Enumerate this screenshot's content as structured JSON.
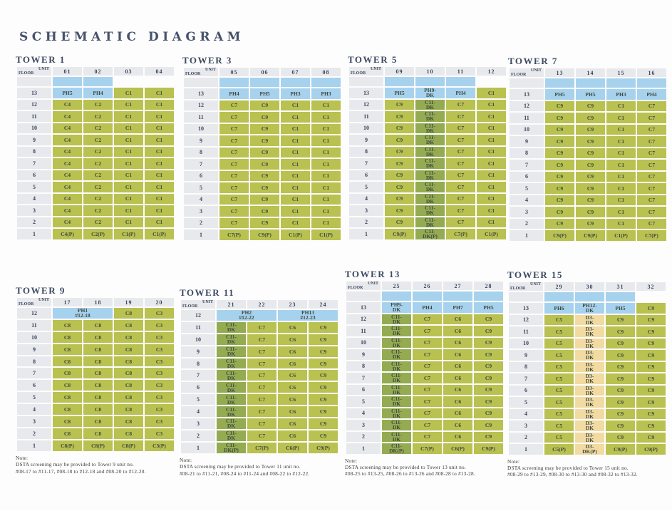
{
  "page": {
    "title": "SCHEMATIC DIAGRAM"
  },
  "corner": {
    "unit": "UNIT",
    "floor": "FLOOR"
  },
  "colors": {
    "green": "#b9c150",
    "dark": "#94ab51",
    "blue": "#a7d2ee",
    "tan": "#f2dba3",
    "gray": "#e8e9ed",
    "headtxt": "#3a465c",
    "celltxt": "#3f4a40"
  },
  "towers": [
    {
      "name": "TOWER 1",
      "units": [
        "01",
        "02",
        "03",
        "04"
      ],
      "gap": [
        "b",
        "b",
        "x",
        "x"
      ],
      "rows": [
        {
          "floor": "13",
          "cells": [
            {
              "t": "PH5",
              "c": "b"
            },
            {
              "t": "PH4",
              "c": "b"
            },
            {
              "t": "C1",
              "c": "g"
            },
            {
              "t": "C1",
              "c": "g"
            }
          ]
        },
        {
          "floors": [
            "12",
            "11",
            "10",
            "9",
            "8",
            "7",
            "6",
            "5",
            "4",
            "3",
            "2"
          ],
          "cells": [
            {
              "t": "C4",
              "c": "g"
            },
            {
              "t": "C2",
              "c": "g"
            },
            {
              "t": "C1",
              "c": "g"
            },
            {
              "t": "C1",
              "c": "g"
            }
          ]
        },
        {
          "floor": "1",
          "cells": [
            {
              "t": "C4(P)",
              "c": "g"
            },
            {
              "t": "C2(P)",
              "c": "g"
            },
            {
              "t": "C1(P)",
              "c": "g"
            },
            {
              "t": "C1(P)",
              "c": "g"
            }
          ]
        }
      ]
    },
    {
      "name": "TOWER 3",
      "units": [
        "05",
        "06",
        "07",
        "08"
      ],
      "gap": [
        "b",
        "b",
        "b",
        "b"
      ],
      "rows": [
        {
          "floor": "13",
          "cells": [
            {
              "t": "PH4",
              "c": "b"
            },
            {
              "t": "PH5",
              "c": "b"
            },
            {
              "t": "PH3",
              "c": "b"
            },
            {
              "t": "PH3",
              "c": "b"
            }
          ]
        },
        {
          "floors": [
            "12",
            "11",
            "10",
            "9",
            "8",
            "7",
            "6",
            "5",
            "4",
            "3",
            "2"
          ],
          "cells": [
            {
              "t": "C7",
              "c": "g"
            },
            {
              "t": "C9",
              "c": "g"
            },
            {
              "t": "C1",
              "c": "g"
            },
            {
              "t": "C1",
              "c": "g"
            }
          ]
        },
        {
          "floor": "1",
          "cells": [
            {
              "t": "C7(P)",
              "c": "g"
            },
            {
              "t": "C9(P)",
              "c": "g"
            },
            {
              "t": "C1(P)",
              "c": "g"
            },
            {
              "t": "C1(P)",
              "c": "g"
            }
          ]
        }
      ]
    },
    {
      "name": "TOWER 5",
      "units": [
        "09",
        "10",
        "11",
        "12"
      ],
      "gap": [
        "b",
        "b",
        "b",
        "x"
      ],
      "rows": [
        {
          "floor": "13",
          "cells": [
            {
              "t": "PH5",
              "c": "b"
            },
            {
              "t": "PH9-\nDK",
              "c": "b"
            },
            {
              "t": "PH4",
              "c": "b"
            },
            {
              "t": "C1",
              "c": "g"
            }
          ]
        },
        {
          "floors": [
            "12",
            "11",
            "10",
            "9",
            "8",
            "7",
            "6",
            "5",
            "4",
            "3",
            "2"
          ],
          "cells": [
            {
              "t": "C9",
              "c": "g"
            },
            {
              "t": "C11-\nDK",
              "c": "d"
            },
            {
              "t": "C7",
              "c": "g"
            },
            {
              "t": "C1",
              "c": "g"
            }
          ]
        },
        {
          "floor": "1",
          "cells": [
            {
              "t": "C9(P)",
              "c": "g"
            },
            {
              "t": "C11-\nDK(P)",
              "c": "d"
            },
            {
              "t": "C7(P)",
              "c": "g"
            },
            {
              "t": "C1(P)",
              "c": "g"
            }
          ]
        }
      ]
    },
    {
      "name": "TOWER 7",
      "units": [
        "13",
        "14",
        "15",
        "16"
      ],
      "gap": [
        "b",
        "b",
        "b",
        "b"
      ],
      "rows": [
        {
          "floor": "13",
          "cells": [
            {
              "t": "PH5",
              "c": "b"
            },
            {
              "t": "PH5",
              "c": "b"
            },
            {
              "t": "PH3",
              "c": "b"
            },
            {
              "t": "PH4",
              "c": "b"
            }
          ]
        },
        {
          "floors": [
            "12",
            "11",
            "10",
            "9",
            "8",
            "7",
            "6",
            "5",
            "4",
            "3",
            "2"
          ],
          "cells": [
            {
              "t": "C9",
              "c": "g"
            },
            {
              "t": "C9",
              "c": "g"
            },
            {
              "t": "C1",
              "c": "g"
            },
            {
              "t": "C7",
              "c": "g"
            }
          ]
        },
        {
          "floor": "1",
          "cells": [
            {
              "t": "C9(P)",
              "c": "g"
            },
            {
              "t": "C9(P)",
              "c": "g"
            },
            {
              "t": "C1(P)",
              "c": "g"
            },
            {
              "t": "C7(P)",
              "c": "g"
            }
          ]
        }
      ]
    },
    {
      "name": "TOWER 9",
      "units": [
        "17",
        "18",
        "19",
        "20"
      ],
      "gap": null,
      "rows": [
        {
          "floor": "12",
          "cells": [
            {
              "t": "PH1\n#12-18",
              "c": "b",
              "s": 2
            },
            {
              "t": "C8",
              "c": "g"
            },
            {
              "t": "C3",
              "c": "g"
            }
          ]
        },
        {
          "floors": [
            "11",
            "10",
            "9",
            "8",
            "7",
            "6",
            "5",
            "4",
            "3",
            "2"
          ],
          "cells": [
            {
              "t": "C8",
              "c": "g"
            },
            {
              "t": "C8",
              "c": "g"
            },
            {
              "t": "C8",
              "c": "g"
            },
            {
              "t": "C3",
              "c": "g"
            }
          ]
        },
        {
          "floor": "1",
          "cells": [
            {
              "t": "C8(P)",
              "c": "g"
            },
            {
              "t": "C8(P)",
              "c": "g"
            },
            {
              "t": "C8(P)",
              "c": "g"
            },
            {
              "t": "C3(P)",
              "c": "g"
            }
          ]
        }
      ],
      "note": {
        "label": "Note:",
        "line1": "DSTA screening may be provided to Tower 9 unit no.",
        "line2": "#08-17 to #11-17, #08-18 to #12-18 and #08-20 to #12-20."
      }
    },
    {
      "name": "TOWER 11",
      "units": [
        "21",
        "22",
        "23",
        "24"
      ],
      "gap": null,
      "rows": [
        {
          "floor": "12",
          "cells": [
            {
              "t": "PH2\n#12-22",
              "c": "b",
              "s": 2
            },
            {
              "t": "PH13\n#12-23",
              "c": "b",
              "s": 2
            }
          ]
        },
        {
          "floors": [
            "11",
            "10",
            "9",
            "8",
            "7",
            "6",
            "5",
            "4",
            "3",
            "2"
          ],
          "cells": [
            {
              "t": "C11-\nDK",
              "c": "d"
            },
            {
              "t": "C7",
              "c": "g"
            },
            {
              "t": "C6",
              "c": "g"
            },
            {
              "t": "C9",
              "c": "g"
            }
          ]
        },
        {
          "floor": "1",
          "cells": [
            {
              "t": "C11-\nDK(P)",
              "c": "d"
            },
            {
              "t": "C7(P)",
              "c": "g"
            },
            {
              "t": "C6(P)",
              "c": "g"
            },
            {
              "t": "C9(P)",
              "c": "g"
            }
          ]
        }
      ],
      "note": {
        "label": "Note:",
        "line1": "DSTA screening may be provided to Tower 11 unit no.",
        "line2": "#08-21 to #11-21, #08-24 to #11-24 and #08-22 to #12-22."
      }
    },
    {
      "name": "TOWER 13",
      "units": [
        "25",
        "26",
        "27",
        "28"
      ],
      "gap": [
        "b",
        "b",
        "b",
        "b"
      ],
      "rows": [
        {
          "floor": "13",
          "cells": [
            {
              "t": "PH9-\nDK",
              "c": "b"
            },
            {
              "t": "PH4",
              "c": "b"
            },
            {
              "t": "PH7",
              "c": "b"
            },
            {
              "t": "PH5",
              "c": "b"
            }
          ]
        },
        {
          "floors": [
            "12",
            "11",
            "10",
            "9",
            "8",
            "7",
            "6",
            "5",
            "4",
            "3",
            "2"
          ],
          "cells": [
            {
              "t": "C11-\nDK",
              "c": "d"
            },
            {
              "t": "C7",
              "c": "g"
            },
            {
              "t": "C6",
              "c": "g"
            },
            {
              "t": "C9",
              "c": "g"
            }
          ]
        },
        {
          "floor": "1",
          "cells": [
            {
              "t": "C11-\nDK(P)",
              "c": "d"
            },
            {
              "t": "C7(P)",
              "c": "g"
            },
            {
              "t": "C6(P)",
              "c": "g"
            },
            {
              "t": "C9(P)",
              "c": "g"
            }
          ]
        }
      ],
      "note": {
        "label": "Note:",
        "line1": "DSTA screening may be provided to Tower 13 unit no.",
        "line2": "#08-25 to #13-25, #08-26 to #13-26 and #08-28 to #13-28."
      }
    },
    {
      "name": "TOWER 15",
      "units": [
        "29",
        "30",
        "31",
        "32"
      ],
      "gap": [
        "b",
        "b",
        "b",
        "x"
      ],
      "rows": [
        {
          "floor": "13",
          "cells": [
            {
              "t": "PH6",
              "c": "b"
            },
            {
              "t": "PH12-\nDK",
              "c": "b"
            },
            {
              "t": "PH5",
              "c": "b"
            },
            {
              "t": "C9",
              "c": "g"
            }
          ]
        },
        {
          "floors": [
            "12",
            "11",
            "10",
            "9",
            "8",
            "7",
            "6",
            "5",
            "4",
            "3",
            "2"
          ],
          "cells": [
            {
              "t": "C5",
              "c": "g"
            },
            {
              "t": "D3-\nDK",
              "c": "o"
            },
            {
              "t": "C9",
              "c": "g"
            },
            {
              "t": "C9",
              "c": "g"
            }
          ]
        },
        {
          "floor": "1",
          "cells": [
            {
              "t": "C5(P)",
              "c": "g"
            },
            {
              "t": "D3-\nDK(P)",
              "c": "o"
            },
            {
              "t": "C9(P)",
              "c": "g"
            },
            {
              "t": "C9(P)",
              "c": "g"
            }
          ]
        }
      ],
      "note": {
        "label": "Note:",
        "line1": "DSTA screening may be provided to Tower 15 unit no.",
        "line2": "#08-29 to #13-29, #08-30 to #13-30 and #08-32 to #13-32."
      }
    }
  ]
}
